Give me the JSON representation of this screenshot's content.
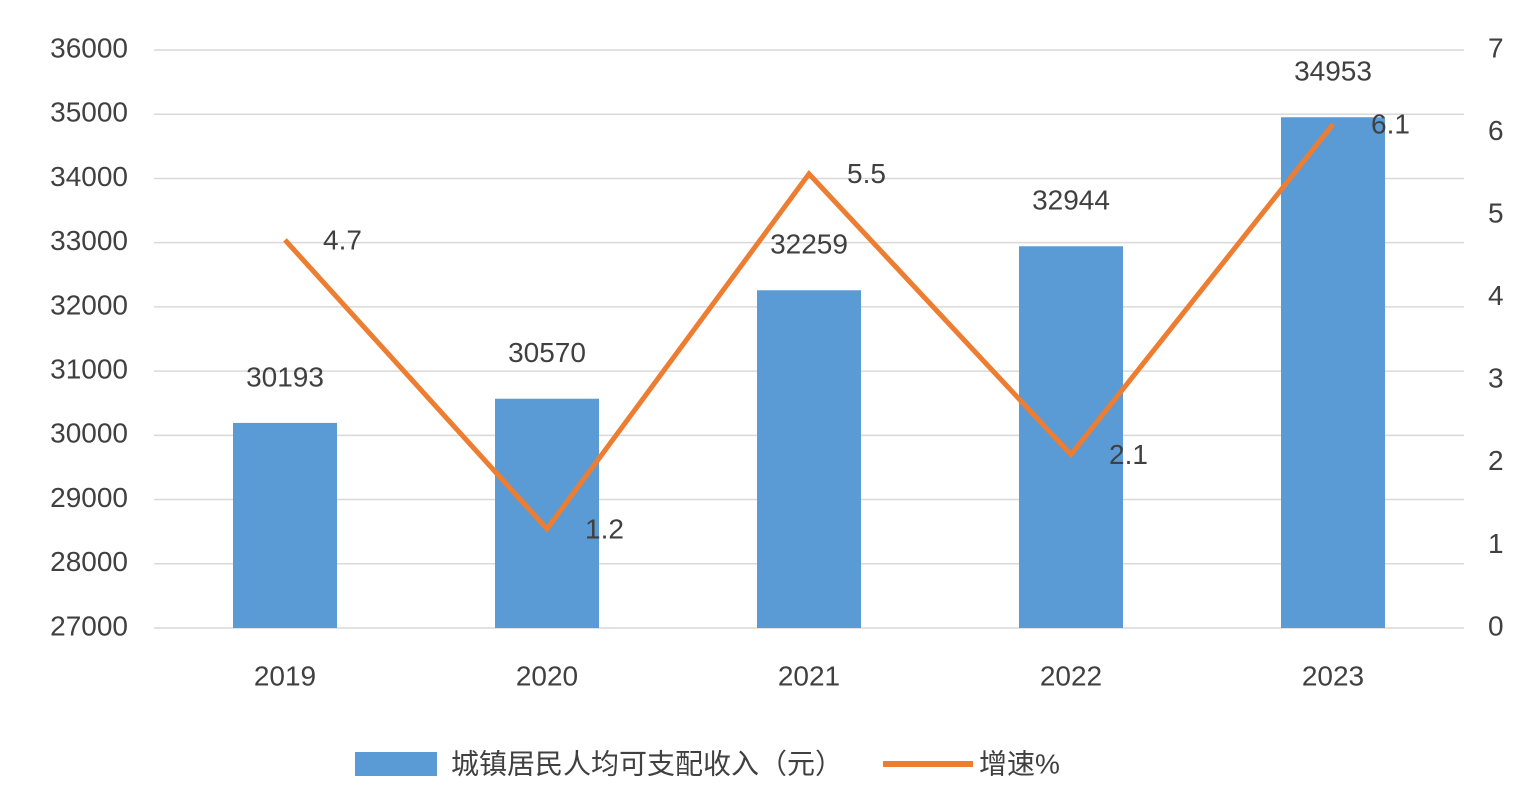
{
  "chart_data": {
    "type": "bar",
    "categories": [
      "2019",
      "2020",
      "2021",
      "2022",
      "2023"
    ],
    "series": [
      {
        "name": "城镇居民人均可支配收入（元）",
        "color": "#5b9bd5",
        "type": "bar",
        "values": [
          30193,
          30570,
          32259,
          32944,
          34953
        ]
      },
      {
        "name": "增速%",
        "color": "#ed7d31",
        "type": "line",
        "axis": "y2",
        "values": [
          4.7,
          1.2,
          5.5,
          2.1,
          6.1
        ]
      }
    ],
    "ylim": [
      27000,
      36000
    ],
    "yticks": [
      27000,
      28000,
      29000,
      30000,
      31000,
      32000,
      33000,
      34000,
      35000,
      36000
    ],
    "y2lim": [
      0,
      7
    ],
    "y2ticks": [
      0,
      1,
      2,
      3,
      4,
      5,
      6,
      7
    ],
    "grid": true,
    "legend": "bottom"
  }
}
